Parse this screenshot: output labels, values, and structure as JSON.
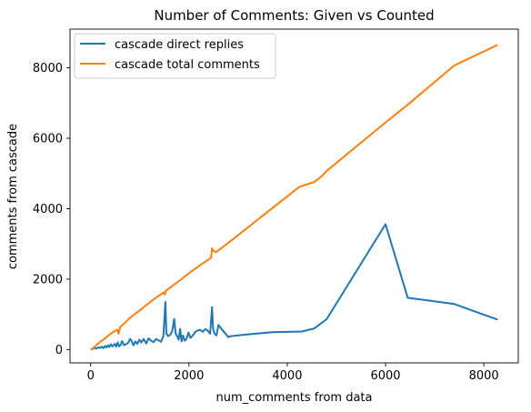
{
  "chart_data": {
    "type": "line",
    "title": "Number of Comments: Given vs Counted",
    "xlabel": "num_comments from data",
    "ylabel": "comments from cascade",
    "xlim": [
      -420,
      8700
    ],
    "ylim": [
      -380,
      9100
    ],
    "xticks": [
      0,
      2000,
      4000,
      6000,
      8000
    ],
    "yticks": [
      0,
      2000,
      4000,
      6000,
      8000
    ],
    "grid": false,
    "legend_position": "top-left",
    "series": [
      {
        "name": "cascade direct replies",
        "color": "#1f77b4",
        "x": [
          0,
          40,
          80,
          120,
          160,
          200,
          230,
          260,
          290,
          320,
          350,
          380,
          410,
          440,
          460,
          490,
          520,
          550,
          580,
          610,
          640,
          680,
          720,
          760,
          800,
          830,
          870,
          910,
          950,
          990,
          1030,
          1080,
          1130,
          1180,
          1230,
          1280,
          1330,
          1380,
          1430,
          1480,
          1520,
          1540,
          1580,
          1620,
          1660,
          1700,
          1730,
          1760,
          1790,
          1820,
          1850,
          1880,
          1910,
          1950,
          1990,
          2030,
          2080,
          2130,
          2180,
          2230,
          2280,
          2330,
          2380,
          2430,
          2470,
          2490,
          2520,
          2560,
          2600,
          2650,
          2700,
          2750,
          2800,
          2850,
          3200,
          3700,
          4300,
          4550,
          4800,
          6000,
          6450,
          7400,
          8280
        ],
        "y": [
          0,
          20,
          40,
          30,
          60,
          50,
          80,
          40,
          100,
          60,
          120,
          70,
          150,
          90,
          110,
          160,
          80,
          200,
          90,
          130,
          240,
          120,
          150,
          180,
          300,
          250,
          120,
          230,
          160,
          280,
          200,
          300,
          170,
          320,
          250,
          210,
          300,
          260,
          220,
          380,
          1350,
          450,
          380,
          420,
          520,
          870,
          450,
          380,
          280,
          580,
          230,
          400,
          250,
          300,
          480,
          330,
          400,
          500,
          540,
          560,
          500,
          580,
          540,
          450,
          1200,
          600,
          450,
          400,
          700,
          600,
          520,
          440,
          350,
          380,
          430,
          490,
          510,
          600,
          860,
          3560,
          1470,
          1290,
          850
        ]
      },
      {
        "name": "cascade total comments",
        "color": "#ff7f0e",
        "x": [
          0,
          60,
          120,
          180,
          240,
          300,
          360,
          420,
          480,
          540,
          570,
          600,
          650,
          700,
          760,
          820,
          880,
          940,
          1000,
          1060,
          1120,
          1180,
          1240,
          1300,
          1360,
          1420,
          1480,
          1510,
          1530,
          1560,
          1600,
          1650,
          1700,
          1750,
          1800,
          1850,
          1900,
          1950,
          2000,
          2050,
          2100,
          2150,
          2200,
          2250,
          2300,
          2350,
          2400,
          2450,
          2470,
          2500,
          2550,
          2600,
          2700,
          3200,
          3700,
          4250,
          4550,
          4700,
          4800,
          6000,
          6450,
          7400,
          8280
        ],
        "y": [
          0,
          50,
          130,
          200,
          260,
          320,
          400,
          460,
          520,
          560,
          450,
          640,
          700,
          760,
          850,
          920,
          990,
          1050,
          1110,
          1180,
          1250,
          1310,
          1380,
          1440,
          1500,
          1560,
          1620,
          1560,
          1680,
          1700,
          1740,
          1790,
          1850,
          1890,
          1950,
          2000,
          2060,
          2110,
          2170,
          2220,
          2270,
          2320,
          2360,
          2420,
          2460,
          2510,
          2560,
          2600,
          2880,
          2800,
          2760,
          2820,
          2920,
          3470,
          4020,
          4620,
          4760,
          4920,
          5070,
          6450,
          6950,
          8070,
          8650
        ]
      }
    ]
  }
}
